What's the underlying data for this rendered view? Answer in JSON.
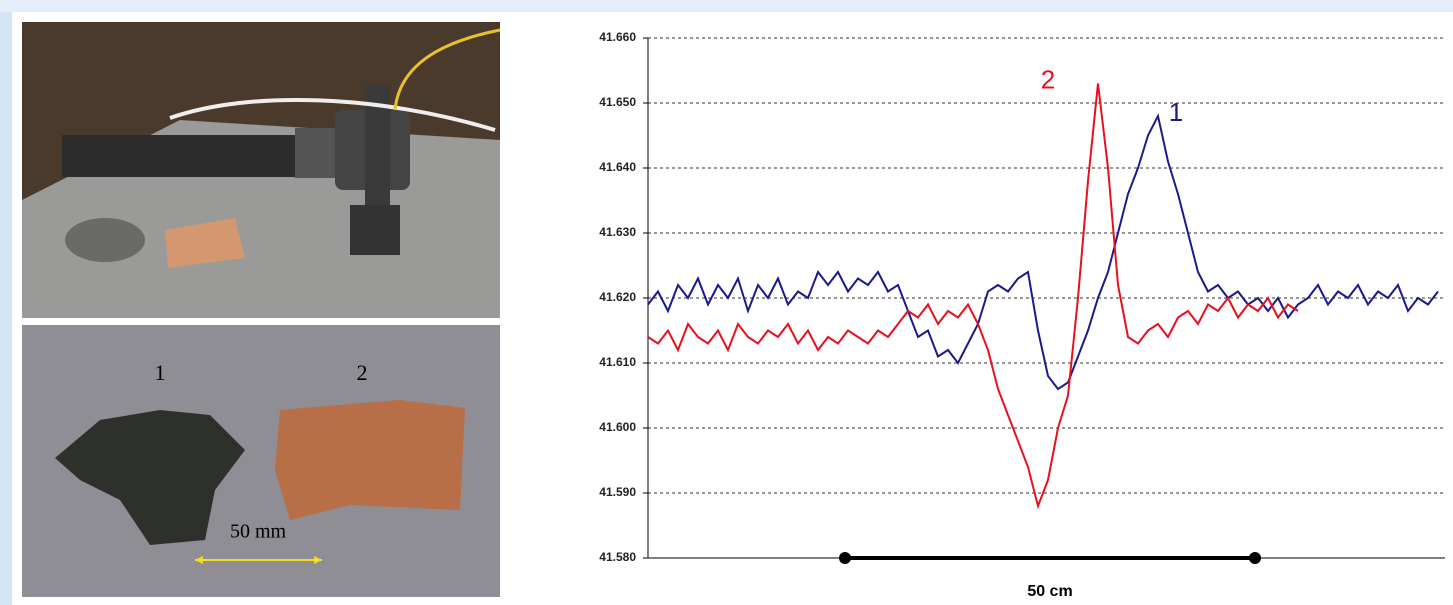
{
  "chart_data": {
    "type": "line",
    "ylim": [
      41.58,
      41.66
    ],
    "yticks": [
      {
        "value": 41.58,
        "label": "41.580"
      },
      {
        "value": 41.59,
        "label": "41.590"
      },
      {
        "value": 41.6,
        "label": "41.600"
      },
      {
        "value": 41.61,
        "label": "41.610"
      },
      {
        "value": 41.62,
        "label": "41.620"
      },
      {
        "value": 41.63,
        "label": "41.630"
      },
      {
        "value": 41.64,
        "label": "41.640"
      },
      {
        "value": 41.65,
        "label": "41.650"
      },
      {
        "value": 41.66,
        "label": "41.660"
      }
    ],
    "grid": true,
    "scale_bar_label": "50 cm",
    "series": [
      {
        "name": "1",
        "color": "#1a1a8c",
        "values": [
          41.619,
          41.621,
          41.618,
          41.622,
          41.62,
          41.623,
          41.619,
          41.622,
          41.62,
          41.623,
          41.618,
          41.622,
          41.62,
          41.623,
          41.619,
          41.621,
          41.62,
          41.624,
          41.622,
          41.624,
          41.621,
          41.623,
          41.622,
          41.624,
          41.621,
          41.622,
          41.618,
          41.614,
          41.615,
          41.611,
          41.612,
          41.61,
          41.613,
          41.616,
          41.621,
          41.622,
          41.621,
          41.623,
          41.624,
          41.615,
          41.608,
          41.606,
          41.607,
          41.611,
          41.615,
          41.62,
          41.624,
          41.63,
          41.636,
          41.64,
          41.645,
          41.648,
          41.641,
          41.636,
          41.63,
          41.624,
          41.621,
          41.622,
          41.62,
          41.621,
          41.619,
          41.62,
          41.618,
          41.62,
          41.617,
          41.619,
          41.62,
          41.622,
          41.619,
          41.621,
          41.62,
          41.622,
          41.619,
          41.621,
          41.62,
          41.622,
          41.618,
          41.62,
          41.619,
          41.621
        ]
      },
      {
        "name": "2",
        "color": "#e8101e",
        "values": [
          41.614,
          41.613,
          41.615,
          41.612,
          41.616,
          41.614,
          41.613,
          41.615,
          41.612,
          41.616,
          41.614,
          41.613,
          41.615,
          41.614,
          41.616,
          41.613,
          41.615,
          41.612,
          41.614,
          41.613,
          41.615,
          41.614,
          41.613,
          41.615,
          41.614,
          41.616,
          41.618,
          41.617,
          41.619,
          41.616,
          41.618,
          41.617,
          41.619,
          41.616,
          41.612,
          41.606,
          41.602,
          41.598,
          41.594,
          41.588,
          41.592,
          41.6,
          41.605,
          41.62,
          41.638,
          41.653,
          41.64,
          41.622,
          41.614,
          41.613,
          41.615,
          41.616,
          41.614,
          41.617,
          41.618,
          41.616,
          41.619,
          41.618,
          41.62,
          41.617,
          41.619,
          41.618,
          41.62,
          41.617,
          41.619,
          41.618,
          null,
          null,
          null,
          null,
          null,
          null,
          null,
          null,
          null,
          null,
          null,
          null,
          null,
          null
        ]
      }
    ]
  },
  "photo_labels": {
    "fragment_1": "1",
    "fragment_2": "2",
    "scale": "50 mm"
  }
}
